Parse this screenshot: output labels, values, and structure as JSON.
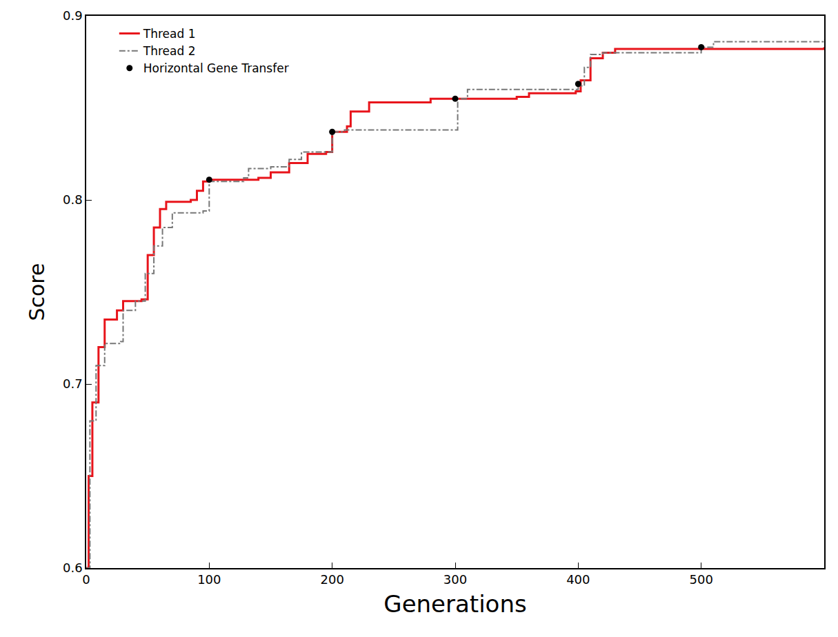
{
  "chart_data": {
    "type": "line",
    "x_label": "Generations",
    "y_label": "Score",
    "xlim": [
      0,
      600
    ],
    "xticks": [
      0,
      100,
      200,
      300,
      400,
      500
    ],
    "ylim": [
      0.6,
      0.9
    ],
    "yticks": [
      0.6,
      0.7,
      0.8,
      0.9
    ],
    "grid": false,
    "legend": "upper left",
    "series": [
      {
        "name": "Thread 1",
        "type": "line",
        "color": "#e8141b",
        "line_style": "solid",
        "x": [
          0,
          2,
          5,
          10,
          15,
          25,
          30,
          45,
          50,
          55,
          60,
          65,
          85,
          90,
          95,
          100,
          140,
          150,
          165,
          180,
          195,
          200,
          212,
          215,
          230,
          280,
          350,
          360,
          398,
          402,
          410,
          420,
          430,
          600
        ],
        "values": [
          0.6,
          0.65,
          0.69,
          0.72,
          0.735,
          0.74,
          0.745,
          0.746,
          0.77,
          0.785,
          0.795,
          0.799,
          0.8,
          0.805,
          0.81,
          0.811,
          0.812,
          0.815,
          0.82,
          0.825,
          0.826,
          0.837,
          0.84,
          0.848,
          0.853,
          0.855,
          0.856,
          0.858,
          0.859,
          0.865,
          0.877,
          0.88,
          0.882,
          0.883
        ]
      },
      {
        "name": "Thread 2",
        "type": "line",
        "color": "#777777",
        "line_style": "dashdot",
        "x": [
          0,
          3,
          8,
          15,
          28,
          30,
          40,
          48,
          55,
          62,
          70,
          95,
          100,
          128,
          132,
          150,
          165,
          175,
          200,
          210,
          298,
          302,
          310,
          390,
          400,
          405,
          410,
          420,
          495,
          500,
          510,
          600
        ],
        "values": [
          0.6,
          0.68,
          0.71,
          0.722,
          0.723,
          0.74,
          0.745,
          0.76,
          0.775,
          0.785,
          0.793,
          0.794,
          0.81,
          0.812,
          0.817,
          0.818,
          0.822,
          0.826,
          0.837,
          0.838,
          0.838,
          0.855,
          0.86,
          0.86,
          0.862,
          0.872,
          0.879,
          0.88,
          0.88,
          0.883,
          0.886,
          0.887
        ]
      },
      {
        "name": "Horizontal Gene Transfer",
        "type": "scatter",
        "color": "#000000",
        "marker": "circle",
        "x": [
          100,
          200,
          300,
          400,
          500
        ],
        "values": [
          0.811,
          0.837,
          0.855,
          0.863,
          0.883
        ]
      }
    ]
  }
}
